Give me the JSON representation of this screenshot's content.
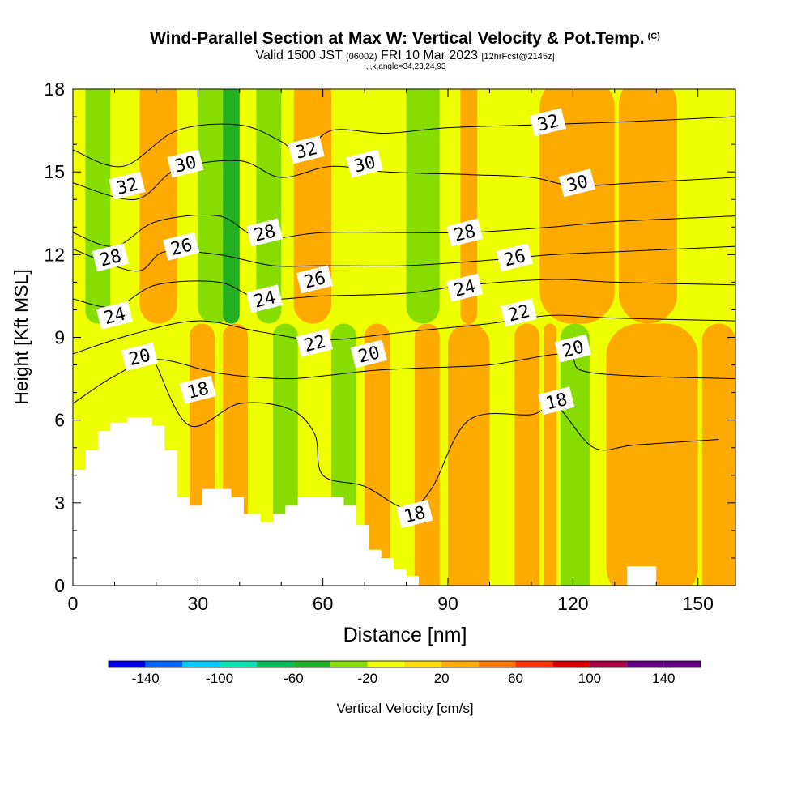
{
  "title": {
    "main": "Wind-Parallel Section at Max W: Vertical Velocity & Pot.Temp.",
    "copyright": "(C)",
    "valid_prefix": "Valid 1500 JST",
    "utc": "(0600Z)",
    "valid_date": "FRI 10 Mar 2023",
    "forecast": "[12hrFcst@2145z]",
    "indices": "i,j,k,angle=34,23,24,93"
  },
  "chart_data": {
    "type": "contour",
    "xlabel": "Distance [nm]",
    "ylabel": "Height [Kft MSL]",
    "xlim": [
      0,
      159
    ],
    "ylim": [
      0,
      18
    ],
    "x_ticks": [
      0,
      30,
      60,
      90,
      120,
      150
    ],
    "y_ticks": [
      0,
      3,
      6,
      9,
      12,
      15,
      18
    ],
    "colorbar": {
      "label": "Vertical Velocity [cm/s]",
      "tick_labels": [
        "-140",
        "-100",
        "-60",
        "-20",
        "20",
        "60",
        "100",
        "140"
      ],
      "levels": [
        -160,
        -140,
        -120,
        -100,
        -80,
        -60,
        -40,
        -20,
        0,
        20,
        40,
        60,
        80,
        100,
        120,
        140,
        160
      ],
      "colors": [
        "#0000ee",
        "#0066ff",
        "#00ccff",
        "#00e0b0",
        "#00bb55",
        "#22b022",
        "#88dd00",
        "#eeff00",
        "#ffdd00",
        "#ffaa00",
        "#ff7700",
        "#ff3300",
        "#dd0000",
        "#aa0044",
        "#660088",
        "#660088"
      ]
    },
    "theta_contours": [
      {
        "label": "18",
        "points": [
          [
            20,
            8
          ],
          [
            28,
            5.8
          ],
          [
            40,
            6.6
          ],
          [
            52,
            6.4
          ],
          [
            58,
            5.5
          ],
          [
            60,
            4
          ],
          [
            70,
            3.6
          ],
          [
            80,
            2.8
          ],
          [
            86,
            3.5
          ],
          [
            95,
            6
          ],
          [
            110,
            6.2
          ],
          [
            116,
            6.5
          ],
          [
            125,
            5
          ],
          [
            135,
            5.1
          ],
          [
            155,
            5.3
          ]
        ]
      },
      {
        "label": "20",
        "points": [
          [
            0,
            6.6
          ],
          [
            10,
            7.6
          ],
          [
            20,
            8.2
          ],
          [
            35,
            7.7
          ],
          [
            50,
            7.5
          ],
          [
            60,
            7.6
          ],
          [
            72,
            7.8
          ],
          [
            85,
            7.9
          ],
          [
            100,
            8
          ],
          [
            118,
            8.4
          ],
          [
            122,
            7.8
          ],
          [
            135,
            7.6
          ],
          [
            159,
            7.5
          ]
        ]
      },
      {
        "label": "22",
        "points": [
          [
            0,
            8.4
          ],
          [
            14,
            9.1
          ],
          [
            30,
            9.6
          ],
          [
            45,
            9.2
          ],
          [
            60,
            8.9
          ],
          [
            80,
            9.2
          ],
          [
            100,
            9.5
          ],
          [
            115,
            9.8
          ],
          [
            130,
            9.7
          ],
          [
            159,
            9.6
          ]
        ]
      },
      {
        "label": "24",
        "points": [
          [
            0,
            10.4
          ],
          [
            10,
            10.1
          ],
          [
            20,
            10.9
          ],
          [
            35,
            11
          ],
          [
            45,
            10.4
          ],
          [
            60,
            10.5
          ],
          [
            80,
            10.6
          ],
          [
            95,
            10.9
          ],
          [
            115,
            11.1
          ],
          [
            130,
            11
          ],
          [
            159,
            10.9
          ]
        ]
      },
      {
        "label": "26",
        "points": [
          [
            0,
            12.2
          ],
          [
            15,
            11.4
          ],
          [
            22,
            12.1
          ],
          [
            35,
            12
          ],
          [
            48,
            11.6
          ],
          [
            60,
            11.6
          ],
          [
            80,
            11.6
          ],
          [
            100,
            11.8
          ],
          [
            115,
            12
          ],
          [
            130,
            12.1
          ],
          [
            159,
            12.3
          ]
        ]
      },
      {
        "label": "28",
        "points": [
          [
            0,
            12.8
          ],
          [
            10,
            12.3
          ],
          [
            20,
            13.2
          ],
          [
            35,
            13.4
          ],
          [
            45,
            12.6
          ],
          [
            60,
            12.8
          ],
          [
            80,
            12.8
          ],
          [
            95,
            12.8
          ],
          [
            115,
            13
          ],
          [
            130,
            13.2
          ],
          [
            159,
            13.4
          ]
        ]
      },
      {
        "label": "30",
        "points": [
          [
            0,
            14.6
          ],
          [
            15,
            14
          ],
          [
            25,
            15.1
          ],
          [
            40,
            15.4
          ],
          [
            50,
            14.8
          ],
          [
            62,
            15.2
          ],
          [
            75,
            15
          ],
          [
            95,
            14.9
          ],
          [
            110,
            14.8
          ],
          [
            120,
            14.5
          ],
          [
            135,
            14.6
          ],
          [
            159,
            14.8
          ]
        ]
      },
      {
        "label": "32",
        "points": [
          [
            0,
            15.8
          ],
          [
            12,
            15.2
          ],
          [
            25,
            16.5
          ],
          [
            40,
            16.7
          ],
          [
            50,
            16.1
          ],
          [
            55,
            15.6
          ],
          [
            62,
            16.5
          ],
          [
            75,
            16.4
          ],
          [
            90,
            16.6
          ],
          [
            110,
            16.7
          ],
          [
            130,
            16.8
          ],
          [
            159,
            17
          ]
        ]
      }
    ],
    "theta_labels": [
      {
        "text": "32",
        "at": [
          13,
          14.5
        ]
      },
      {
        "text": "30",
        "at": [
          27,
          15.3
        ]
      },
      {
        "text": "32",
        "at": [
          56,
          15.8
        ]
      },
      {
        "text": "30",
        "at": [
          70,
          15.3
        ]
      },
      {
        "text": "32",
        "at": [
          114,
          16.8
        ]
      },
      {
        "text": "30",
        "at": [
          121,
          14.6
        ]
      },
      {
        "text": "28",
        "at": [
          9,
          11.9
        ]
      },
      {
        "text": "26",
        "at": [
          26,
          12.3
        ]
      },
      {
        "text": "28",
        "at": [
          46,
          12.8
        ]
      },
      {
        "text": "28",
        "at": [
          94,
          12.8
        ]
      },
      {
        "text": "26",
        "at": [
          58,
          11.1
        ]
      },
      {
        "text": "26",
        "at": [
          106,
          11.9
        ]
      },
      {
        "text": "24",
        "at": [
          10,
          9.8
        ]
      },
      {
        "text": "24",
        "at": [
          46,
          10.4
        ]
      },
      {
        "text": "24",
        "at": [
          94,
          10.8
        ]
      },
      {
        "text": "22",
        "at": [
          58,
          8.8
        ]
      },
      {
        "text": "22",
        "at": [
          107,
          9.9
        ]
      },
      {
        "text": "20",
        "at": [
          16,
          8.3
        ]
      },
      {
        "text": "20",
        "at": [
          71,
          8.4
        ]
      },
      {
        "text": "20",
        "at": [
          120,
          8.6
        ]
      },
      {
        "text": "18",
        "at": [
          30,
          7.1
        ]
      },
      {
        "text": "18",
        "at": [
          116,
          6.7
        ]
      },
      {
        "text": "18",
        "at": [
          82,
          2.6
        ]
      }
    ],
    "terrain_top": [
      [
        0,
        4.2
      ],
      [
        3,
        4.2
      ],
      [
        3,
        4.9
      ],
      [
        6,
        4.9
      ],
      [
        6,
        5.6
      ],
      [
        9,
        5.6
      ],
      [
        9,
        5.9
      ],
      [
        13,
        5.9
      ],
      [
        13,
        6.1
      ],
      [
        19,
        6.1
      ],
      [
        19,
        5.8
      ],
      [
        22,
        5.8
      ],
      [
        22,
        4.9
      ],
      [
        25,
        4.9
      ],
      [
        25,
        3.2
      ],
      [
        28,
        3.2
      ],
      [
        28,
        2.9
      ],
      [
        31,
        2.9
      ],
      [
        31,
        3.5
      ],
      [
        38,
        3.5
      ],
      [
        38,
        3.2
      ],
      [
        41,
        3.2
      ],
      [
        41,
        2.6
      ],
      [
        45,
        2.6
      ],
      [
        45,
        2.3
      ],
      [
        48,
        2.3
      ],
      [
        48,
        2.6
      ],
      [
        51,
        2.6
      ],
      [
        51,
        2.9
      ],
      [
        54,
        2.9
      ],
      [
        54,
        3.2
      ],
      [
        65,
        3.2
      ],
      [
        65,
        2.9
      ],
      [
        68,
        2.9
      ],
      [
        68,
        2.2
      ],
      [
        71,
        2.2
      ],
      [
        71,
        1.3
      ],
      [
        74,
        1.3
      ],
      [
        74,
        1.0
      ],
      [
        77,
        1.0
      ],
      [
        77,
        0.6
      ],
      [
        80,
        0.6
      ],
      [
        80,
        0.35
      ],
      [
        83,
        0.35
      ],
      [
        83,
        0
      ]
    ],
    "terrain_top_right": [
      [
        133,
        0.35
      ],
      [
        133,
        0.7
      ],
      [
        140,
        0.7
      ],
      [
        140,
        0.35
      ]
    ],
    "vv_bands_upper": [
      {
        "x": [
          3,
          9
        ],
        "level": -30
      },
      {
        "x": [
          16,
          25
        ],
        "level": 30
      },
      {
        "x": [
          30,
          38
        ],
        "level": -30
      },
      {
        "x": [
          36,
          40
        ],
        "level": -60
      },
      {
        "x": [
          44,
          50
        ],
        "level": -30
      },
      {
        "x": [
          53,
          62
        ],
        "level": 20
      },
      {
        "x": [
          80,
          88
        ],
        "level": -30
      },
      {
        "x": [
          93,
          97
        ],
        "level": 20
      },
      {
        "x": [
          112,
          130
        ],
        "level": 20
      },
      {
        "x": [
          131,
          145
        ],
        "level": 20
      }
    ],
    "vv_bands_lower": [
      {
        "x": [
          28,
          34
        ],
        "level": 20
      },
      {
        "x": [
          36,
          42
        ],
        "level": 20
      },
      {
        "x": [
          48,
          54
        ],
        "level": -30
      },
      {
        "x": [
          62,
          68
        ],
        "level": -30
      },
      {
        "x": [
          70,
          76
        ],
        "level": 20
      },
      {
        "x": [
          82,
          88
        ],
        "level": 30
      },
      {
        "x": [
          90,
          100
        ],
        "level": 20
      },
      {
        "x": [
          106,
          112
        ],
        "level": 20
      },
      {
        "x": [
          113,
          116
        ],
        "level": 30
      },
      {
        "x": [
          117,
          124
        ],
        "level": -30
      },
      {
        "x": [
          128,
          150
        ],
        "level": 20
      },
      {
        "x": [
          151,
          159
        ],
        "level": 20
      }
    ]
  }
}
